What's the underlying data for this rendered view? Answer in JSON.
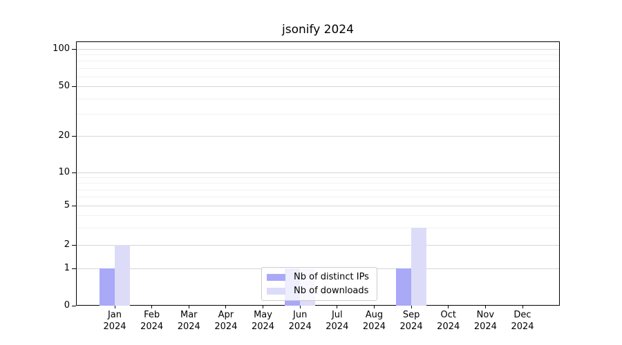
{
  "chart_data": {
    "type": "bar",
    "title": "jsonify 2024",
    "categories": [
      "Jan",
      "Feb",
      "Mar",
      "Apr",
      "May",
      "Jun",
      "Jul",
      "Aug",
      "Sep",
      "Oct",
      "Nov",
      "Dec"
    ],
    "year_label": "2024",
    "series": [
      {
        "name": "Nb of distinct IPs",
        "color": "#a9a9f7",
        "values": [
          1,
          0,
          0,
          0,
          0,
          1,
          0,
          0,
          1,
          0,
          0,
          0
        ]
      },
      {
        "name": "Nb of downloads",
        "color": "#dcdcf9",
        "values": [
          2,
          0,
          0,
          0,
          0,
          1,
          0,
          0,
          3,
          0,
          0,
          0
        ]
      }
    ],
    "yticks": [
      0,
      1,
      2,
      5,
      10,
      20,
      50,
      100
    ],
    "ylim": [
      0,
      100
    ],
    "yscale": "log-like (linear 0-1, log above)",
    "grid": "horizontal major and minor",
    "legend_position": "lower center inside plot",
    "colors": {
      "major_grid": "#d6d6d6",
      "minor_grid": "#f0f0f0",
      "axis": "#000000",
      "legend_border": "#cccccc"
    }
  }
}
